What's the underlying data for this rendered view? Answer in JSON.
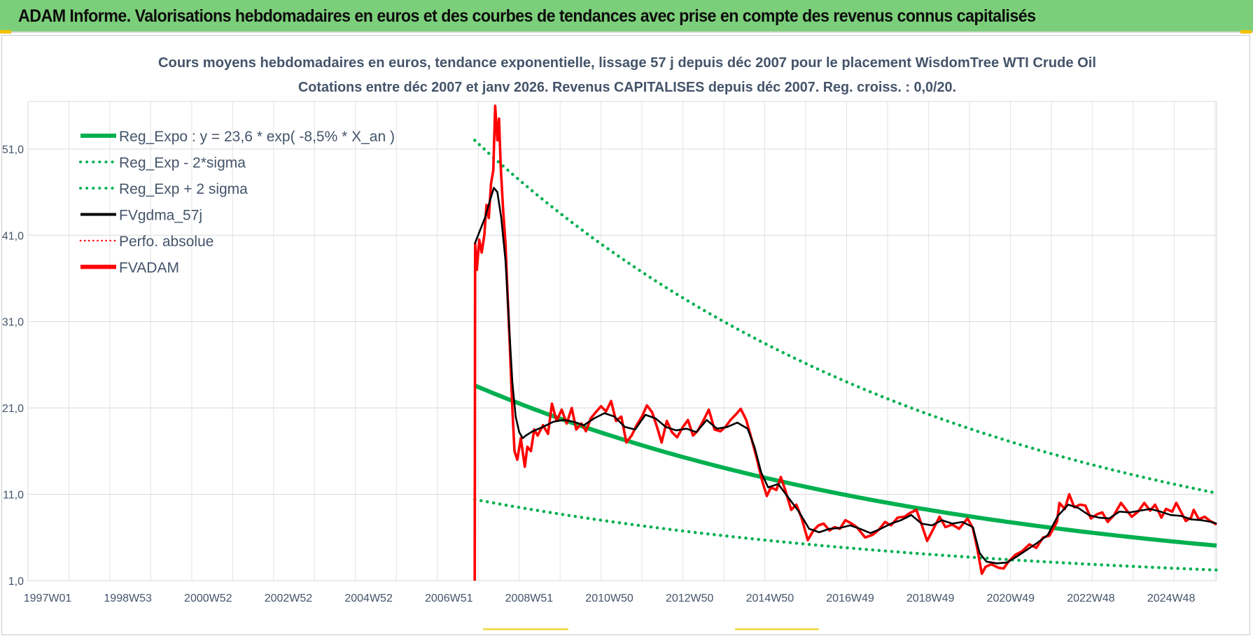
{
  "banner": {
    "title": "ADAM Informe. Valorisations hebdomadaires en euros et des courbes de tendances avec prise en compte des revenus connus capitalisés"
  },
  "colors": {
    "banner_bg": "#7ccf7a",
    "trend_green": "#00b050",
    "smooth_black": "#000000",
    "adam_red": "#ff0000",
    "grid": "#d9d9d9",
    "text": "#44546a"
  },
  "chart_data": {
    "type": "line",
    "title": "Cours moyens hebdomadaires en euros, tendance exponentielle, lissage 57 j depuis déc 2007 pour le placement WisdomTree WTI Crude Oil",
    "subtitle": "Cotations entre déc 2007 et janv 2026. Revenus CAPITALISES depuis déc 2007. Reg. croiss. : 0,0/20.",
    "xlabel": "",
    "ylabel": "",
    "x_axis": {
      "type": "weekly-date",
      "range": [
        "1997-01-01",
        "2026-01-15"
      ],
      "tick_labels": [
        "1997W01",
        "1998W53",
        "2000W52",
        "2002W52",
        "2004W52",
        "2006W51",
        "2008W51",
        "2010W50",
        "2012W50",
        "2014W50",
        "2016W49",
        "2018W49",
        "2020W49",
        "2022W48",
        "2024W48"
      ]
    },
    "y_axis": {
      "range": [
        1.0,
        56.5
      ],
      "ticks": [
        1.0,
        11.0,
        21.0,
        31.0,
        41.0,
        51.0
      ],
      "tick_labels": [
        "1,0",
        "11,0",
        "21,0",
        "31,0",
        "41,0",
        "51,0"
      ]
    },
    "grid": true,
    "legend_position": "top-left",
    "series": [
      {
        "name": "Reg_Expo : y = 23,6 * exp( -8,5% *  X_an )",
        "color": "#00b050",
        "style": "solid",
        "kind": "exponential",
        "x_start": "2007-12-01",
        "x_end": "2026-01-15",
        "a": 23.6,
        "rate_per_year": -0.085
      },
      {
        "name": "Reg_Exp - 2*sigma",
        "color": "#00b050",
        "style": "dotted",
        "kind": "exponential",
        "x_start": "2007-12-01",
        "x_end": "2026-01-15",
        "a": 10.4,
        "rate_per_year": -0.085
      },
      {
        "name": "Reg_Exp + 2 sigma",
        "color": "#00b050",
        "style": "dotted",
        "kind": "exponential",
        "x_start": "2007-12-01",
        "x_end": "2026-01-15",
        "a": 52.0,
        "rate_per_year": -0.085
      },
      {
        "name": "FVgdma_57j",
        "color": "#000000",
        "style": "solid",
        "kind": "points",
        "points": [
          [
            "2007-12-01",
            40.0
          ],
          [
            "2008-01-15",
            41.5
          ],
          [
            "2008-03-01",
            43.0
          ],
          [
            "2008-04-15",
            45.0
          ],
          [
            "2008-05-20",
            46.5
          ],
          [
            "2008-06-20",
            46.0
          ],
          [
            "2008-07-25",
            43.0
          ],
          [
            "2008-09-01",
            38.0
          ],
          [
            "2008-10-01",
            31.0
          ],
          [
            "2008-11-01",
            24.0
          ],
          [
            "2008-12-01",
            20.0
          ],
          [
            "2009-01-01",
            18.2
          ],
          [
            "2009-02-01",
            17.5
          ],
          [
            "2009-03-01",
            17.8
          ],
          [
            "2009-05-01",
            18.3
          ],
          [
            "2009-08-01",
            18.8
          ],
          [
            "2009-11-01",
            19.4
          ],
          [
            "2010-02-01",
            19.6
          ],
          [
            "2010-05-01",
            19.4
          ],
          [
            "2010-08-01",
            19.0
          ],
          [
            "2010-11-01",
            19.8
          ],
          [
            "2011-02-01",
            20.4
          ],
          [
            "2011-05-01",
            20.0
          ],
          [
            "2011-08-01",
            18.8
          ],
          [
            "2011-11-01",
            18.5
          ],
          [
            "2012-02-01",
            20.2
          ],
          [
            "2012-05-01",
            19.8
          ],
          [
            "2012-08-01",
            18.8
          ],
          [
            "2012-11-01",
            18.4
          ],
          [
            "2013-02-01",
            18.6
          ],
          [
            "2013-05-01",
            18.2
          ],
          [
            "2013-08-01",
            19.6
          ],
          [
            "2013-11-01",
            18.6
          ],
          [
            "2014-02-01",
            18.8
          ],
          [
            "2014-05-01",
            19.3
          ],
          [
            "2014-08-01",
            18.6
          ],
          [
            "2014-10-01",
            16.5
          ],
          [
            "2014-12-01",
            13.5
          ],
          [
            "2015-02-01",
            11.8
          ],
          [
            "2015-05-01",
            12.2
          ],
          [
            "2015-08-01",
            10.6
          ],
          [
            "2015-11-01",
            9.0
          ],
          [
            "2016-02-01",
            7.0
          ],
          [
            "2016-05-01",
            6.6
          ],
          [
            "2016-08-01",
            7.0
          ],
          [
            "2016-11-01",
            7.1
          ],
          [
            "2017-02-01",
            7.4
          ],
          [
            "2017-05-01",
            7.0
          ],
          [
            "2017-08-01",
            6.5
          ],
          [
            "2017-11-01",
            7.0
          ],
          [
            "2018-02-01",
            7.6
          ],
          [
            "2018-05-01",
            8.0
          ],
          [
            "2018-08-01",
            8.6
          ],
          [
            "2018-11-01",
            7.6
          ],
          [
            "2019-02-01",
            7.4
          ],
          [
            "2019-05-01",
            8.0
          ],
          [
            "2019-08-01",
            7.6
          ],
          [
            "2019-11-01",
            7.8
          ],
          [
            "2020-02-01",
            7.2
          ],
          [
            "2020-04-01",
            4.2
          ],
          [
            "2020-06-01",
            3.2
          ],
          [
            "2020-09-01",
            3.0
          ],
          [
            "2020-12-01",
            3.1
          ],
          [
            "2021-03-01",
            3.8
          ],
          [
            "2021-06-01",
            4.6
          ],
          [
            "2021-09-01",
            5.4
          ],
          [
            "2021-12-01",
            6.3
          ],
          [
            "2022-03-01",
            8.5
          ],
          [
            "2022-06-01",
            9.8
          ],
          [
            "2022-09-01",
            9.4
          ],
          [
            "2022-12-01",
            8.6
          ],
          [
            "2023-03-01",
            8.3
          ],
          [
            "2023-06-01",
            8.2
          ],
          [
            "2023-09-01",
            9.0
          ],
          [
            "2023-12-01",
            8.9
          ],
          [
            "2024-03-01",
            9.1
          ],
          [
            "2024-06-01",
            9.3
          ],
          [
            "2024-09-01",
            9.0
          ],
          [
            "2024-12-01",
            8.6
          ],
          [
            "2025-03-01",
            8.5
          ],
          [
            "2025-06-01",
            8.1
          ],
          [
            "2025-09-01",
            8.0
          ],
          [
            "2025-12-01",
            7.8
          ],
          [
            "2026-01-15",
            7.6
          ]
        ]
      },
      {
        "name": "Perfo. absolue",
        "color": "#ff0000",
        "style": "dotted",
        "kind": "points",
        "points": []
      },
      {
        "name": "FVADAM",
        "color": "#ff0000",
        "style": "solid",
        "kind": "points",
        "points": [
          [
            "2007-12-01",
            1.0
          ],
          [
            "2007-12-05",
            40.0
          ],
          [
            "2007-12-20",
            37.0
          ],
          [
            "2008-01-10",
            40.5
          ],
          [
            "2008-02-01",
            39.0
          ],
          [
            "2008-02-25",
            41.0
          ],
          [
            "2008-03-15",
            44.5
          ],
          [
            "2008-04-05",
            43.0
          ],
          [
            "2008-04-25",
            47.0
          ],
          [
            "2008-05-15",
            48.5
          ],
          [
            "2008-06-01",
            56.0
          ],
          [
            "2008-06-20",
            52.0
          ],
          [
            "2008-07-05",
            54.5
          ],
          [
            "2008-07-20",
            49.0
          ],
          [
            "2008-08-10",
            44.0
          ],
          [
            "2008-09-01",
            40.0
          ],
          [
            "2008-09-20",
            34.0
          ],
          [
            "2008-10-10",
            28.0
          ],
          [
            "2008-11-01",
            21.0
          ],
          [
            "2008-11-20",
            16.0
          ],
          [
            "2008-12-15",
            15.0
          ],
          [
            "2009-01-15",
            17.5
          ],
          [
            "2009-02-20",
            14.2
          ],
          [
            "2009-03-15",
            16.5
          ],
          [
            "2009-04-15",
            16.0
          ],
          [
            "2009-05-15",
            18.5
          ],
          [
            "2009-06-15",
            17.8
          ],
          [
            "2009-08-01",
            19.0
          ],
          [
            "2009-09-15",
            18.0
          ],
          [
            "2009-10-20",
            21.5
          ],
          [
            "2009-12-01",
            19.5
          ],
          [
            "2010-01-15",
            20.8
          ],
          [
            "2010-03-01",
            19.2
          ],
          [
            "2010-04-15",
            21.0
          ],
          [
            "2010-05-25",
            18.5
          ],
          [
            "2010-07-10",
            19.2
          ],
          [
            "2010-08-20",
            18.3
          ],
          [
            "2010-10-01",
            19.8
          ],
          [
            "2010-11-15",
            20.5
          ],
          [
            "2011-01-01",
            21.2
          ],
          [
            "2011-02-15",
            20.6
          ],
          [
            "2011-04-01",
            21.8
          ],
          [
            "2011-05-15",
            19.5
          ],
          [
            "2011-07-01",
            20.0
          ],
          [
            "2011-08-15",
            17.0
          ],
          [
            "2011-10-01",
            17.8
          ],
          [
            "2011-11-15",
            19.0
          ],
          [
            "2012-01-01",
            20.0
          ],
          [
            "2012-02-15",
            21.3
          ],
          [
            "2012-04-01",
            20.5
          ],
          [
            "2012-05-15",
            18.8
          ],
          [
            "2012-06-25",
            17.0
          ],
          [
            "2012-08-10",
            19.5
          ],
          [
            "2012-09-25",
            18.2
          ],
          [
            "2012-11-10",
            17.6
          ],
          [
            "2013-01-01",
            18.8
          ],
          [
            "2013-02-15",
            19.6
          ],
          [
            "2013-04-01",
            17.8
          ],
          [
            "2013-05-15",
            18.4
          ],
          [
            "2013-07-01",
            19.5
          ],
          [
            "2013-08-20",
            20.8
          ],
          [
            "2013-10-10",
            18.5
          ],
          [
            "2013-12-01",
            18.3
          ],
          [
            "2014-01-15",
            18.8
          ],
          [
            "2014-03-01",
            19.6
          ],
          [
            "2014-04-15",
            20.2
          ],
          [
            "2014-06-01",
            20.9
          ],
          [
            "2014-07-20",
            19.6
          ],
          [
            "2014-09-10",
            17.2
          ],
          [
            "2014-10-25",
            15.0
          ],
          [
            "2014-12-10",
            12.5
          ],
          [
            "2015-01-20",
            10.8
          ],
          [
            "2015-02-25",
            11.8
          ],
          [
            "2015-04-15",
            11.5
          ],
          [
            "2015-05-25",
            13.0
          ],
          [
            "2015-07-10",
            11.2
          ],
          [
            "2015-08-25",
            9.2
          ],
          [
            "2015-10-10",
            9.8
          ],
          [
            "2015-11-25",
            8.3
          ],
          [
            "2016-01-20",
            5.7
          ],
          [
            "2016-03-10",
            6.8
          ],
          [
            "2016-04-25",
            7.4
          ],
          [
            "2016-06-10",
            7.6
          ],
          [
            "2016-08-01",
            6.8
          ],
          [
            "2016-09-15",
            7.2
          ],
          [
            "2016-11-01",
            7.0
          ],
          [
            "2016-12-20",
            8.0
          ],
          [
            "2017-02-15",
            7.6
          ],
          [
            "2017-04-01",
            7.2
          ],
          [
            "2017-06-15",
            6.0
          ],
          [
            "2017-08-20",
            6.3
          ],
          [
            "2017-10-15",
            6.9
          ],
          [
            "2017-12-10",
            7.8
          ],
          [
            "2018-02-01",
            7.4
          ],
          [
            "2018-04-01",
            8.3
          ],
          [
            "2018-06-01",
            8.4
          ],
          [
            "2018-07-15",
            8.8
          ],
          [
            "2018-09-15",
            9.2
          ],
          [
            "2018-11-01",
            7.5
          ],
          [
            "2018-12-20",
            5.6
          ],
          [
            "2019-02-10",
            6.9
          ],
          [
            "2019-04-10",
            8.4
          ],
          [
            "2019-06-01",
            7.2
          ],
          [
            "2019-08-01",
            7.5
          ],
          [
            "2019-10-01",
            7.0
          ],
          [
            "2019-12-15",
            8.2
          ],
          [
            "2020-02-01",
            7.1
          ],
          [
            "2020-03-10",
            4.8
          ],
          [
            "2020-04-21",
            1.8
          ],
          [
            "2020-05-25",
            2.6
          ],
          [
            "2020-07-15",
            2.9
          ],
          [
            "2020-09-15",
            2.5
          ],
          [
            "2020-11-01",
            2.4
          ],
          [
            "2020-12-15",
            3.2
          ],
          [
            "2021-02-15",
            4.0
          ],
          [
            "2021-04-15",
            4.4
          ],
          [
            "2021-06-20",
            5.2
          ],
          [
            "2021-08-20",
            4.8
          ],
          [
            "2021-10-20",
            6.0
          ],
          [
            "2021-12-15",
            6.2
          ],
          [
            "2022-02-20",
            7.8
          ],
          [
            "2022-03-15",
            10.0
          ],
          [
            "2022-05-01",
            9.3
          ],
          [
            "2022-06-10",
            11.0
          ],
          [
            "2022-07-25",
            9.5
          ],
          [
            "2022-09-15",
            9.8
          ],
          [
            "2022-11-01",
            9.7
          ],
          [
            "2022-12-20",
            8.2
          ],
          [
            "2023-02-15",
            8.7
          ],
          [
            "2023-04-01",
            8.9
          ],
          [
            "2023-05-20",
            7.8
          ],
          [
            "2023-07-15",
            8.6
          ],
          [
            "2023-09-15",
            10.0
          ],
          [
            "2023-11-01",
            9.2
          ],
          [
            "2023-12-20",
            8.4
          ],
          [
            "2024-02-15",
            9.0
          ],
          [
            "2024-04-10",
            10.0
          ],
          [
            "2024-06-01",
            9.1
          ],
          [
            "2024-07-15",
            9.8
          ],
          [
            "2024-09-10",
            8.3
          ],
          [
            "2024-10-20",
            9.3
          ],
          [
            "2024-12-15",
            9.0
          ],
          [
            "2025-01-20",
            10.0
          ],
          [
            "2025-03-10",
            8.8
          ],
          [
            "2025-04-15",
            7.9
          ],
          [
            "2025-06-01",
            8.3
          ],
          [
            "2025-06-25",
            9.2
          ],
          [
            "2025-08-10",
            8.1
          ],
          [
            "2025-10-01",
            8.4
          ],
          [
            "2025-11-20",
            7.9
          ],
          [
            "2026-01-15",
            7.5
          ]
        ]
      }
    ]
  }
}
